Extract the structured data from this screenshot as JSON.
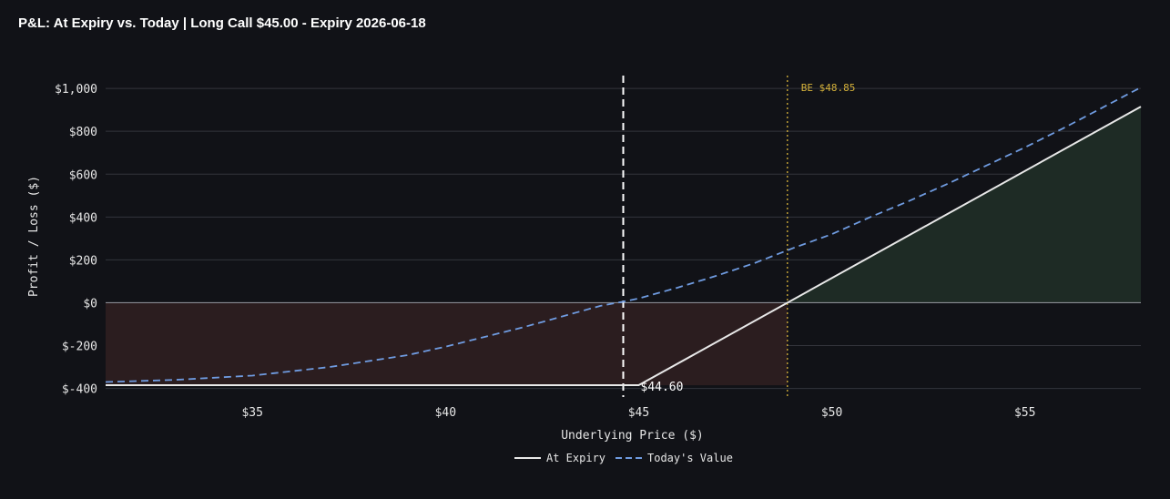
{
  "title": "P&L: At Expiry vs. Today | Long Call $45.00 - Expiry 2026-06-18",
  "colors": {
    "background": "#111217",
    "grid": "#33353c",
    "zero_line": "#8a8c94",
    "at_expiry": "#e8e8e8",
    "todays_value": "#6f9be0",
    "breakeven": "#d6b23a",
    "current_price_line": "#ffffff",
    "profit_fill": "#1e2b25",
    "loss_fill": "#2b1d1f",
    "tick_text": "#e6e6e6"
  },
  "chart_data": {
    "type": "line",
    "title": "P&L: At Expiry vs. Today | Long Call $45.00 - Expiry 2026-06-18",
    "xlabel": "Underlying Price ($)",
    "ylabel": "Profit / Loss ($)",
    "xlim": [
      31.2,
      58.0
    ],
    "ylim": [
      -440,
      1060
    ],
    "x_ticks": [
      35,
      40,
      45,
      50,
      55
    ],
    "x_tick_labels": [
      "$35",
      "$40",
      "$45",
      "$50",
      "$55"
    ],
    "y_ticks": [
      -400,
      -200,
      0,
      200,
      400,
      600,
      800,
      1000
    ],
    "y_tick_labels": [
      "$-400",
      "$-200",
      "$0",
      "$200",
      "$400",
      "$600",
      "$800",
      "$1,000"
    ],
    "grid": true,
    "legend": "bottom-center",
    "series": [
      {
        "name": "At Expiry",
        "style": "solid",
        "x": [
          31.2,
          44.6,
          45.0,
          58.0
        ],
        "y": [
          -385,
          -385,
          -385,
          915
        ]
      },
      {
        "name": "Today's Value",
        "style": "dashed",
        "x": [
          31.2,
          33,
          35,
          37,
          39,
          40,
          41,
          42,
          43,
          44,
          44.6,
          45,
          46,
          47,
          48,
          49,
          50,
          51,
          52,
          53,
          54,
          55,
          56,
          57,
          58
        ],
        "y": [
          -370,
          -360,
          -340,
          -300,
          -245,
          -205,
          -160,
          -115,
          -65,
          -15,
          5,
          20,
          70,
          125,
          185,
          255,
          320,
          400,
          475,
          555,
          640,
          725,
          815,
          910,
          1005
        ]
      }
    ],
    "annotations": {
      "current_price": {
        "x": 44.6,
        "label": "$44.60"
      },
      "breakeven": {
        "x": 48.85,
        "label": "BE $48.85"
      }
    },
    "shading": {
      "loss_region": {
        "x_from": 31.2,
        "x_to": 48.85,
        "y_to": -385
      },
      "profit_region": {
        "x_from": 48.85,
        "x_to": 58.0
      }
    }
  }
}
